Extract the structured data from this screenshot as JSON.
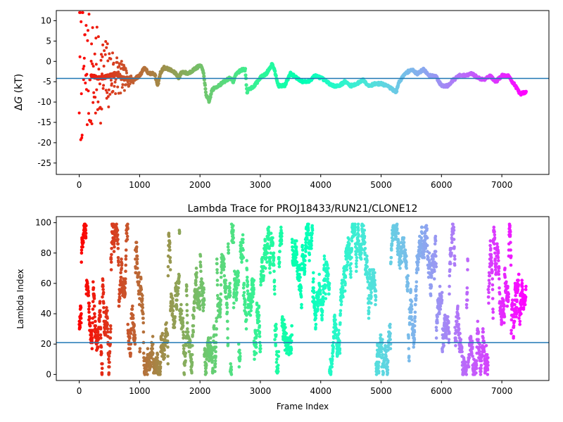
{
  "chart_data": [
    {
      "type": "scatter",
      "title": "",
      "xlabel": "",
      "ylabel_symbol": "Δ",
      "ylabel_italic": "G",
      "ylabel_rest": " (kT)",
      "xlim": [
        -380,
        7780
      ],
      "ylim": [
        -27.8,
        12.5
      ],
      "xticks": [
        0,
        1000,
        2000,
        3000,
        4000,
        5000,
        6000,
        7000
      ],
      "yticks": [
        10,
        5,
        0,
        -5,
        -10,
        -15,
        -20,
        -25
      ],
      "hline": -4.2,
      "hline_color": "#1f77b4",
      "colormap": "rainbow (red at frame 0 to violet at last frame)",
      "n_frames": 7400,
      "trace_keypoints": [
        [
          50,
          -3
        ],
        [
          120,
          -2.5
        ],
        [
          200,
          -3.5
        ],
        [
          300,
          -4
        ],
        [
          400,
          -4
        ],
        [
          500,
          -3.5
        ],
        [
          600,
          -3
        ],
        [
          700,
          -4
        ],
        [
          800,
          -4.5
        ],
        [
          900,
          -4.5
        ],
        [
          1000,
          -3.5
        ],
        [
          1080,
          -1.5
        ],
        [
          1150,
          -3
        ],
        [
          1250,
          -3
        ],
        [
          1300,
          -6
        ],
        [
          1340,
          -3
        ],
        [
          1400,
          -1.5
        ],
        [
          1500,
          -2
        ],
        [
          1600,
          -3
        ],
        [
          1650,
          -4
        ],
        [
          1700,
          -2.5
        ],
        [
          1800,
          -3
        ],
        [
          1900,
          -2
        ],
        [
          2000,
          -1
        ],
        [
          2050,
          -2
        ],
        [
          2100,
          -8
        ],
        [
          2150,
          -10
        ],
        [
          2200,
          -7
        ],
        [
          2300,
          -6
        ],
        [
          2400,
          -5
        ],
        [
          2500,
          -4
        ],
        [
          2550,
          -5
        ],
        [
          2600,
          -3
        ],
        [
          2700,
          -2
        ],
        [
          2750,
          -2
        ],
        [
          2780,
          -8
        ],
        [
          2800,
          -7
        ],
        [
          2900,
          -6
        ],
        [
          3000,
          -4
        ],
        [
          3100,
          -3
        ],
        [
          3180,
          -1
        ],
        [
          3200,
          -0.5
        ],
        [
          3250,
          -3
        ],
        [
          3300,
          -6
        ],
        [
          3400,
          -6
        ],
        [
          3500,
          -3
        ],
        [
          3600,
          -4
        ],
        [
          3700,
          -5
        ],
        [
          3800,
          -5
        ],
        [
          3900,
          -3.5
        ],
        [
          4000,
          -4
        ],
        [
          4100,
          -5
        ],
        [
          4200,
          -6
        ],
        [
          4300,
          -6
        ],
        [
          4400,
          -5
        ],
        [
          4500,
          -6
        ],
        [
          4600,
          -5.5
        ],
        [
          4700,
          -4.5
        ],
        [
          4800,
          -6
        ],
        [
          4900,
          -5.5
        ],
        [
          5000,
          -5.5
        ],
        [
          5100,
          -6
        ],
        [
          5200,
          -7
        ],
        [
          5250,
          -7.5
        ],
        [
          5300,
          -5
        ],
        [
          5400,
          -3
        ],
        [
          5500,
          -2
        ],
        [
          5600,
          -3
        ],
        [
          5700,
          -2
        ],
        [
          5800,
          -3.5
        ],
        [
          5900,
          -3.5
        ],
        [
          6000,
          -6
        ],
        [
          6100,
          -6
        ],
        [
          6200,
          -4.5
        ],
        [
          6300,
          -3.5
        ],
        [
          6400,
          -3.5
        ],
        [
          6500,
          -3
        ],
        [
          6600,
          -4
        ],
        [
          6700,
          -4.5
        ],
        [
          6800,
          -3.5
        ],
        [
          6900,
          -5
        ],
        [
          7000,
          -3.5
        ],
        [
          7100,
          -3.5
        ],
        [
          7200,
          -5.5
        ],
        [
          7300,
          -8
        ],
        [
          7400,
          -7.5
        ]
      ],
      "early_scatter_range": [
        -27,
        12
      ]
    },
    {
      "type": "scatter",
      "title": "Lambda Trace for PROJ18433/RUN21/CLONE12",
      "xlabel": "Frame Index",
      "ylabel": "Lambda Index",
      "xlim": [
        -380,
        7780
      ],
      "ylim": [
        -4,
        104
      ],
      "xticks": [
        0,
        1000,
        2000,
        3000,
        4000,
        5000,
        6000,
        7000
      ],
      "yticks": [
        0,
        20,
        40,
        60,
        80,
        100
      ],
      "hline": 21,
      "hline_color": "#1f77b4",
      "colormap": "rainbow (red at frame 0 to violet at last frame)",
      "n_frames": 7400,
      "value_range": [
        0,
        99
      ]
    }
  ]
}
